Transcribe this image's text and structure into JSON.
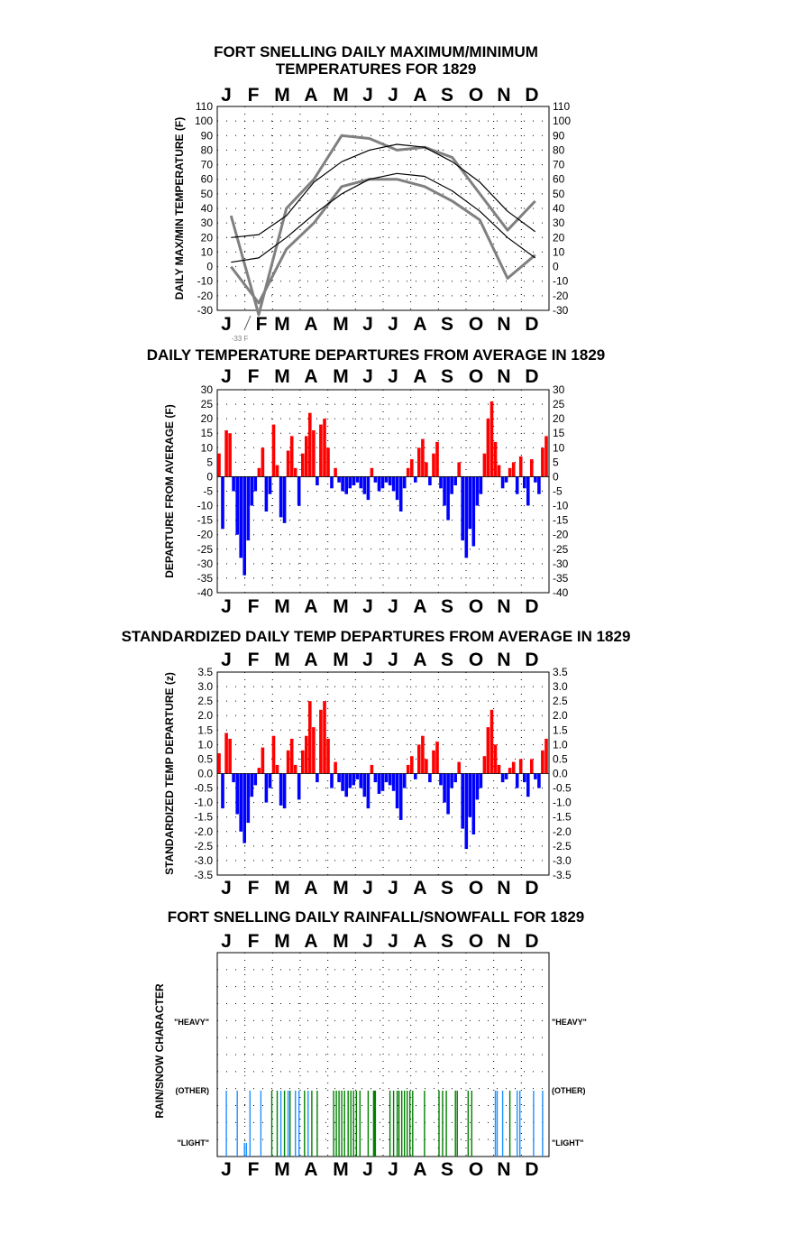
{
  "months": [
    "J",
    "F",
    "M",
    "A",
    "M",
    "J",
    "J",
    "A",
    "S",
    "O",
    "N",
    "D"
  ],
  "colors": {
    "warm": "#ff0000",
    "cold": "#0000ff",
    "daily_trace": "#808080",
    "normal_line": "#000000",
    "rain": "#008000",
    "snow": "#1e90ff",
    "grid_dots": "#000000"
  },
  "chart_data": [
    {
      "id": "maxmin",
      "type": "line",
      "title_lines": [
        "FORT SNELLING DAILY MAXIMUM/MINIMUM",
        "TEMPERATURES FOR 1829"
      ],
      "ylabel": "DAILY MAX/MIN TEMPERATURE (F)",
      "ylim": [
        -30,
        110
      ],
      "yticks": [
        110,
        100,
        90,
        80,
        70,
        60,
        50,
        40,
        30,
        20,
        10,
        0,
        -10,
        -20,
        -30
      ],
      "grid": true,
      "annotation": "-33 F",
      "x": [
        "Jan",
        "Feb",
        "Mar",
        "Apr",
        "May",
        "Jun",
        "Jul",
        "Aug",
        "Sep",
        "Oct",
        "Nov",
        "Dec"
      ],
      "series": [
        {
          "values": [
            20,
            22,
            35,
            58,
            72,
            80,
            84,
            82,
            72,
            58,
            38,
            24
          ]
        },
        {
          "values": [
            3,
            6,
            20,
            36,
            50,
            60,
            64,
            62,
            52,
            38,
            20,
            6
          ]
        },
        {
          "values": [
            35,
            -33,
            40,
            60,
            90,
            88,
            80,
            82,
            75,
            50,
            25,
            45
          ]
        },
        {
          "values": [
            0,
            -25,
            12,
            30,
            55,
            60,
            60,
            55,
            45,
            32,
            -8,
            8
          ]
        }
      ]
    },
    {
      "id": "departures",
      "type": "bar",
      "title": "DAILY TEMPERATURE DEPARTURES FROM AVERAGE IN 1829",
      "ylabel": "DEPARTURE FROM AVERAGE (F)",
      "ylim": [
        -40,
        30
      ],
      "yticks": [
        30,
        25,
        20,
        15,
        10,
        5,
        0,
        -5,
        -10,
        -15,
        -20,
        -25,
        -30,
        -35,
        -40
      ],
      "grid": true,
      "x": [
        2,
        6,
        10,
        14,
        18,
        22,
        26,
        30,
        34,
        38,
        42,
        46,
        50,
        54,
        58,
        62,
        66,
        70,
        74,
        78,
        82,
        86,
        90,
        94,
        98,
        102,
        106,
        110,
        114,
        118,
        122,
        126,
        130,
        134,
        138,
        142,
        146,
        150,
        154,
        158,
        162,
        166,
        170,
        174,
        178,
        182,
        186,
        190,
        194,
        198,
        202,
        206,
        210,
        214,
        218,
        222,
        226,
        230,
        234,
        238,
        242,
        246,
        250,
        254,
        258,
        262,
        266,
        270,
        274,
        278,
        282,
        286,
        290,
        294,
        298,
        302,
        306,
        310,
        314,
        318,
        322,
        326,
        330,
        334,
        338,
        342,
        346,
        350,
        354,
        358,
        362
      ],
      "values": [
        8,
        -18,
        16,
        15,
        -5,
        -20,
        -28,
        -34,
        -22,
        -10,
        -5,
        3,
        10,
        -12,
        -6,
        18,
        4,
        -14,
        -16,
        9,
        14,
        3,
        -10,
        8,
        14,
        22,
        16,
        -3,
        18,
        20,
        10,
        -4,
        3,
        -2,
        -5,
        -6,
        -4,
        -3,
        -2,
        -4,
        -6,
        -8,
        3,
        -2,
        -5,
        -4,
        -2,
        -3,
        -5,
        -8,
        -12,
        -4,
        3,
        6,
        -2,
        10,
        13,
        5,
        -3,
        8,
        12,
        -4,
        -10,
        -15,
        -6,
        -3,
        5,
        -22,
        -28,
        -18,
        -24,
        -10,
        -6,
        8,
        20,
        26,
        12,
        4,
        -4,
        -2,
        3,
        5,
        -6,
        7,
        -4,
        -10,
        6,
        -2,
        -6,
        10,
        14
      ]
    },
    {
      "id": "standardized",
      "type": "bar",
      "title": "STANDARDIZED DAILY TEMP DEPARTURES FROM AVERAGE IN 1829",
      "ylabel": "STANDARDIZED TEMP DEPARTURE (z)",
      "ylim": [
        -3.5,
        3.5
      ],
      "yticks": [
        "3.5",
        "3.0",
        "2.5",
        "2.0",
        "1.5",
        "1.0",
        "0.5",
        "0.0",
        "-0.5",
        "-1.0",
        "-1.5",
        "-2.0",
        "-2.5",
        "-3.0",
        "-3.5"
      ],
      "grid": true,
      "x": [
        2,
        6,
        10,
        14,
        18,
        22,
        26,
        30,
        34,
        38,
        42,
        46,
        50,
        54,
        58,
        62,
        66,
        70,
        74,
        78,
        82,
        86,
        90,
        94,
        98,
        102,
        106,
        110,
        114,
        118,
        122,
        126,
        130,
        134,
        138,
        142,
        146,
        150,
        154,
        158,
        162,
        166,
        170,
        174,
        178,
        182,
        186,
        190,
        194,
        198,
        202,
        206,
        210,
        214,
        218,
        222,
        226,
        230,
        234,
        238,
        242,
        246,
        250,
        254,
        258,
        262,
        266,
        270,
        274,
        278,
        282,
        286,
        290,
        294,
        298,
        302,
        306,
        310,
        314,
        318,
        322,
        326,
        330,
        334,
        338,
        342,
        346,
        350,
        354,
        358,
        362
      ],
      "values": [
        0.7,
        -1.2,
        1.4,
        1.2,
        -0.3,
        -1.4,
        -2.0,
        -2.4,
        -1.7,
        -0.8,
        -0.4,
        0.2,
        0.9,
        -1.0,
        -0.5,
        1.3,
        0.3,
        -1.1,
        -1.2,
        0.8,
        1.2,
        0.3,
        -0.9,
        0.8,
        1.3,
        2.5,
        1.6,
        -0.3,
        2.2,
        2.5,
        1.2,
        -0.5,
        0.4,
        -0.3,
        -0.6,
        -0.8,
        -0.5,
        -0.4,
        -0.2,
        -0.5,
        -0.8,
        -1.2,
        0.3,
        -0.3,
        -0.7,
        -0.6,
        -0.3,
        -0.4,
        -0.6,
        -1.2,
        -1.6,
        -0.5,
        0.3,
        0.6,
        -0.2,
        1.0,
        1.3,
        0.5,
        -0.3,
        0.8,
        1.1,
        -0.4,
        -1.0,
        -1.4,
        -0.5,
        -0.3,
        0.4,
        -1.9,
        -2.6,
        -1.5,
        -2.1,
        -0.9,
        -0.5,
        0.6,
        1.6,
        2.2,
        1.0,
        0.3,
        -0.3,
        -0.2,
        0.2,
        0.4,
        -0.5,
        0.5,
        -0.3,
        -0.8,
        0.5,
        -0.2,
        -0.5,
        0.8,
        1.2
      ]
    },
    {
      "id": "precip",
      "type": "bar",
      "title": "FORT SNELLING DAILY RAINFALL/SNOWFALL FOR 1829",
      "ylabel": "RAIN/SNOW CHARACTER",
      "categories": [
        "\"HEAVY\"",
        "(OTHER)",
        "\"LIGHT\""
      ],
      "grid": true,
      "events": [
        {
          "day": 10,
          "kind": "snow",
          "level": "other"
        },
        {
          "day": 22,
          "kind": "snow",
          "level": "other"
        },
        {
          "day": 30,
          "kind": "snow",
          "level": "light"
        },
        {
          "day": 32,
          "kind": "snow",
          "level": "light"
        },
        {
          "day": 36,
          "kind": "snow",
          "level": "other"
        },
        {
          "day": 48,
          "kind": "snow",
          "level": "other"
        },
        {
          "day": 60,
          "kind": "rain",
          "level": "other"
        },
        {
          "day": 66,
          "kind": "rain",
          "level": "other"
        },
        {
          "day": 70,
          "kind": "snow",
          "level": "other"
        },
        {
          "day": 74,
          "kind": "rain",
          "level": "other"
        },
        {
          "day": 78,
          "kind": "snow",
          "level": "other"
        },
        {
          "day": 80,
          "kind": "rain",
          "level": "other"
        },
        {
          "day": 86,
          "kind": "snow",
          "level": "other"
        },
        {
          "day": 90,
          "kind": "snow",
          "level": "other"
        },
        {
          "day": 96,
          "kind": "rain",
          "level": "other"
        },
        {
          "day": 100,
          "kind": "snow",
          "level": "other"
        },
        {
          "day": 104,
          "kind": "rain",
          "level": "other"
        },
        {
          "day": 110,
          "kind": "rain",
          "level": "other"
        },
        {
          "day": 128,
          "kind": "rain",
          "level": "other"
        },
        {
          "day": 131,
          "kind": "rain",
          "level": "other"
        },
        {
          "day": 134,
          "kind": "rain",
          "level": "other"
        },
        {
          "day": 137,
          "kind": "rain",
          "level": "other"
        },
        {
          "day": 140,
          "kind": "rain",
          "level": "other"
        },
        {
          "day": 144,
          "kind": "rain",
          "level": "other"
        },
        {
          "day": 147,
          "kind": "rain",
          "level": "other"
        },
        {
          "day": 150,
          "kind": "rain",
          "level": "other"
        },
        {
          "day": 153,
          "kind": "rain",
          "level": "other"
        },
        {
          "day": 157,
          "kind": "rain",
          "level": "other"
        },
        {
          "day": 166,
          "kind": "rain",
          "level": "other"
        },
        {
          "day": 172,
          "kind": "rain",
          "level": "other"
        },
        {
          "day": 173,
          "kind": "rain",
          "level": "other"
        },
        {
          "day": 174,
          "kind": "rain",
          "level": "other"
        },
        {
          "day": 190,
          "kind": "rain",
          "level": "other"
        },
        {
          "day": 194,
          "kind": "rain",
          "level": "other"
        },
        {
          "day": 198,
          "kind": "rain",
          "level": "other"
        },
        {
          "day": 200,
          "kind": "rain",
          "level": "other"
        },
        {
          "day": 203,
          "kind": "rain",
          "level": "other"
        },
        {
          "day": 206,
          "kind": "rain",
          "level": "other"
        },
        {
          "day": 209,
          "kind": "rain",
          "level": "other"
        },
        {
          "day": 212,
          "kind": "rain",
          "level": "other"
        },
        {
          "day": 215,
          "kind": "rain",
          "level": "other"
        },
        {
          "day": 228,
          "kind": "rain",
          "level": "other"
        },
        {
          "day": 244,
          "kind": "rain",
          "level": "other"
        },
        {
          "day": 248,
          "kind": "rain",
          "level": "other"
        },
        {
          "day": 252,
          "kind": "rain",
          "level": "other"
        },
        {
          "day": 262,
          "kind": "rain",
          "level": "other"
        },
        {
          "day": 264,
          "kind": "rain",
          "level": "other"
        },
        {
          "day": 276,
          "kind": "rain",
          "level": "other"
        },
        {
          "day": 280,
          "kind": "rain",
          "level": "other"
        },
        {
          "day": 306,
          "kind": "snow",
          "level": "other"
        },
        {
          "day": 308,
          "kind": "snow",
          "level": "other"
        },
        {
          "day": 314,
          "kind": "snow",
          "level": "other"
        },
        {
          "day": 322,
          "kind": "rain",
          "level": "other"
        },
        {
          "day": 330,
          "kind": "snow",
          "level": "other"
        },
        {
          "day": 333,
          "kind": "snow",
          "level": "other"
        },
        {
          "day": 348,
          "kind": "snow",
          "level": "other"
        },
        {
          "day": 358,
          "kind": "snow",
          "level": "other"
        }
      ]
    }
  ]
}
